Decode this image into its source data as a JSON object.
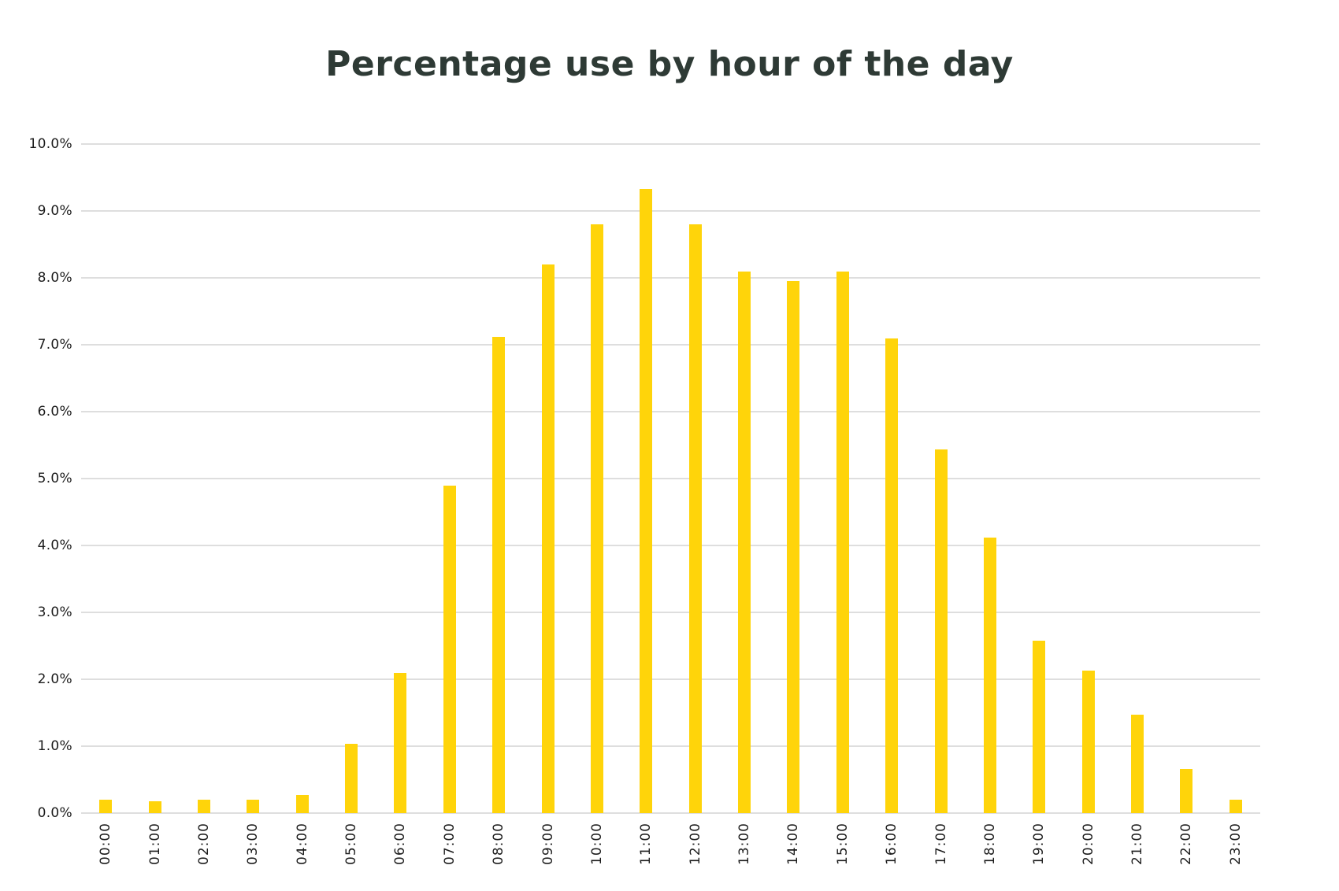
{
  "title": "Percentage use by hour of the day",
  "colors": {
    "bar": "#ffd40a",
    "title_text": "#2e3a35",
    "grid": "#dedede",
    "tick_text": "#1c1c1c",
    "background": "#ffffff"
  },
  "chart_data": {
    "type": "bar",
    "title": "Percentage use by hour of the day",
    "categories": [
      "00:00",
      "01:00",
      "02:00",
      "03:00",
      "04:00",
      "05:00",
      "06:00",
      "07:00",
      "08:00",
      "09:00",
      "10:00",
      "11:00",
      "12:00",
      "13:00",
      "14:00",
      "15:00",
      "16:00",
      "17:00",
      "18:00",
      "19:00",
      "20:00",
      "21:00",
      "22:00",
      "23:00"
    ],
    "values": [
      0.2,
      0.18,
      0.2,
      0.2,
      0.27,
      1.03,
      2.1,
      4.9,
      7.12,
      8.2,
      8.8,
      9.33,
      8.8,
      8.1,
      7.95,
      8.1,
      7.1,
      5.43,
      4.12,
      2.58,
      2.13,
      1.47,
      0.66,
      0.2
    ],
    "xlabel": "",
    "ylabel": "",
    "ylim": [
      0,
      10
    ],
    "ytick_labels": [
      "0.0%",
      "1.0%",
      "2.0%",
      "3.0%",
      "4.0%",
      "5.0%",
      "6.0%",
      "7.0%",
      "8.0%",
      "9.0%",
      "10.0%"
    ],
    "grid": true,
    "legend_position": "none",
    "bar_color": "#ffd40a"
  }
}
